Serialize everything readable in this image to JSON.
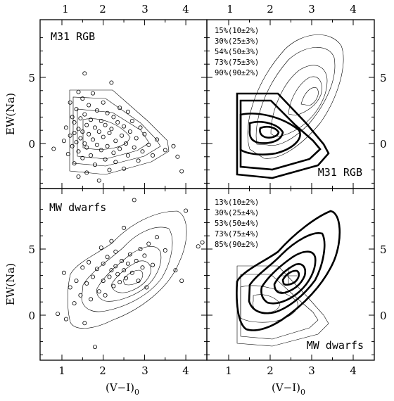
{
  "figure": {
    "x_ticks": [
      "1",
      "2",
      "3",
      "4"
    ],
    "y_ticks": [
      "0",
      "5"
    ],
    "xlabel": "(V−I)",
    "xlabel_sub": "0",
    "ylabel": "EW(Na)"
  },
  "panels": {
    "top_left": {
      "label": "M31 RGB"
    },
    "top_right": {
      "label": "M31 RGB",
      "legend": [
        "15%(10±2%)",
        "30%(25±3%)",
        "54%(50±3%)",
        "73%(75±3%)",
        "90%(90±2%)"
      ]
    },
    "bottom_left": {
      "label": "MW dwarfs"
    },
    "bottom_right": {
      "label": "MW dwarfs",
      "legend": [
        "13%(10±2%)",
        "30%(25±4%)",
        "53%(50±4%)",
        "73%(75±4%)",
        "85%(90±2%)"
      ]
    }
  },
  "chart_data": [
    {
      "type": "scatter",
      "panel": "top_left",
      "label": "M31 RGB",
      "xlabel": "(V−I)0",
      "ylabel": "EW(Na)",
      "xlim": [
        0.6,
        4.5
      ],
      "ylim": [
        -3.3,
        8.8
      ],
      "points": [
        [
          0.8,
          -0.4
        ],
        [
          1.05,
          0.2
        ],
        [
          1.1,
          1.2
        ],
        [
          1.15,
          -0.8
        ],
        [
          1.2,
          0.6
        ],
        [
          1.2,
          3.1
        ],
        [
          1.25,
          2.0
        ],
        [
          1.25,
          -0.2
        ],
        [
          1.3,
          1.6
        ],
        [
          1.3,
          0.8
        ],
        [
          1.3,
          -1.5
        ],
        [
          1.35,
          2.6
        ],
        [
          1.35,
          0.1
        ],
        [
          1.4,
          3.9
        ],
        [
          1.4,
          1.1
        ],
        [
          1.4,
          -0.6
        ],
        [
          1.4,
          -2.5
        ],
        [
          1.45,
          1.9
        ],
        [
          1.45,
          0.4
        ],
        [
          1.5,
          3.4
        ],
        [
          1.5,
          -1.1
        ],
        [
          1.5,
          0.9
        ],
        [
          1.55,
          5.3
        ],
        [
          1.55,
          2.2
        ],
        [
          1.55,
          0.0
        ],
        [
          1.6,
          1.4
        ],
        [
          1.6,
          -0.3
        ],
        [
          1.6,
          -2.2
        ],
        [
          1.65,
          2.9
        ],
        [
          1.65,
          0.7
        ],
        [
          1.7,
          1.8
        ],
        [
          1.7,
          -0.9
        ],
        [
          1.75,
          3.8
        ],
        [
          1.75,
          0.3
        ],
        [
          1.8,
          1.2
        ],
        [
          1.8,
          -1.6
        ],
        [
          1.85,
          2.5
        ],
        [
          1.85,
          -0.1
        ],
        [
          1.9,
          0.9
        ],
        [
          1.9,
          -2.8
        ],
        [
          1.95,
          1.7
        ],
        [
          1.95,
          -0.5
        ],
        [
          2.0,
          3.1
        ],
        [
          2.0,
          0.5
        ],
        [
          2.05,
          -1.2
        ],
        [
          2.05,
          1.4
        ],
        [
          2.1,
          2.3
        ],
        [
          2.1,
          -0.2
        ],
        [
          2.15,
          0.8
        ],
        [
          2.15,
          -2.0
        ],
        [
          2.2,
          4.6
        ],
        [
          2.2,
          1.1
        ],
        [
          2.25,
          -0.7
        ],
        [
          2.25,
          2.0
        ],
        [
          2.3,
          0.2
        ],
        [
          2.3,
          -1.4
        ],
        [
          2.35,
          1.6
        ],
        [
          2.4,
          2.7
        ],
        [
          2.4,
          -0.4
        ],
        [
          2.45,
          0.6
        ],
        [
          2.5,
          -1.9
        ],
        [
          2.5,
          1.3
        ],
        [
          2.55,
          0.0
        ],
        [
          2.6,
          2.4
        ],
        [
          2.6,
          -0.9
        ],
        [
          2.65,
          0.9
        ],
        [
          2.7,
          1.7
        ],
        [
          2.75,
          -0.3
        ],
        [
          2.8,
          0.4
        ],
        [
          2.85,
          -1.3
        ],
        [
          2.9,
          1.2
        ],
        [
          2.95,
          -0.6
        ],
        [
          3.0,
          0.7
        ],
        [
          3.1,
          -0.1
        ],
        [
          3.2,
          -0.9
        ],
        [
          3.3,
          0.3
        ],
        [
          3.5,
          -0.5
        ],
        [
          3.7,
          -0.2
        ],
        [
          3.8,
          -1.0
        ],
        [
          3.9,
          -2.1
        ]
      ]
    },
    {
      "type": "scatter",
      "panel": "bottom_left",
      "label": "MW dwarfs",
      "xlabel": "(V−I)0",
      "ylabel": "EW(Na)",
      "xlim": [
        0.6,
        4.5
      ],
      "ylim": [
        -3.3,
        8.8
      ],
      "points": [
        [
          0.9,
          0.1
        ],
        [
          1.05,
          3.2
        ],
        [
          1.1,
          -0.3
        ],
        [
          1.2,
          2.1
        ],
        [
          1.3,
          0.9
        ],
        [
          1.35,
          2.6
        ],
        [
          1.45,
          1.5
        ],
        [
          1.5,
          3.6
        ],
        [
          1.55,
          -0.6
        ],
        [
          1.6,
          2.4
        ],
        [
          1.65,
          4.0
        ],
        [
          1.7,
          1.2
        ],
        [
          1.75,
          2.9
        ],
        [
          1.8,
          -2.4
        ],
        [
          1.85,
          3.5
        ],
        [
          1.9,
          1.8
        ],
        [
          1.95,
          5.1
        ],
        [
          2.0,
          2.6
        ],
        [
          2.0,
          3.9
        ],
        [
          2.05,
          1.5
        ],
        [
          2.1,
          4.4
        ],
        [
          2.15,
          2.9
        ],
        [
          2.2,
          3.4
        ],
        [
          2.2,
          5.6
        ],
        [
          2.25,
          2.2
        ],
        [
          2.3,
          3.7
        ],
        [
          2.3,
          4.8
        ],
        [
          2.35,
          3.1
        ],
        [
          2.4,
          2.5
        ],
        [
          2.45,
          4.1
        ],
        [
          2.5,
          3.4
        ],
        [
          2.5,
          6.6
        ],
        [
          2.55,
          2.8
        ],
        [
          2.6,
          3.9
        ],
        [
          2.65,
          4.6
        ],
        [
          2.7,
          3.2
        ],
        [
          2.75,
          8.7
        ],
        [
          2.8,
          4.1
        ],
        [
          2.85,
          2.6
        ],
        [
          2.9,
          5.0
        ],
        [
          2.95,
          3.6
        ],
        [
          3.0,
          4.5
        ],
        [
          3.05,
          2.1
        ],
        [
          3.1,
          5.4
        ],
        [
          3.2,
          3.8
        ],
        [
          3.3,
          5.9
        ],
        [
          3.5,
          4.9
        ],
        [
          3.75,
          3.4
        ],
        [
          3.9,
          2.6
        ],
        [
          4.0,
          7.9
        ],
        [
          4.3,
          5.2
        ],
        [
          4.4,
          5.5
        ]
      ]
    },
    {
      "type": "contour",
      "panel": "top_right",
      "label": "M31 RGB",
      "levels": [
        "15%(10±2%)",
        "30%(25±3%)",
        "54%(50±3%)",
        "73%(75±3%)",
        "90%(90±2%)"
      ],
      "xlim": [
        0.6,
        4.5
      ],
      "ylim": [
        -3.3,
        8.8
      ]
    },
    {
      "type": "contour",
      "panel": "bottom_right",
      "label": "MW dwarfs",
      "levels": [
        "13%(10±2%)",
        "30%(25±4%)",
        "53%(50±4%)",
        "73%(75±4%)",
        "85%(90±2%)"
      ],
      "xlim": [
        0.6,
        4.5
      ],
      "ylim": [
        -3.3,
        8.8
      ]
    }
  ]
}
